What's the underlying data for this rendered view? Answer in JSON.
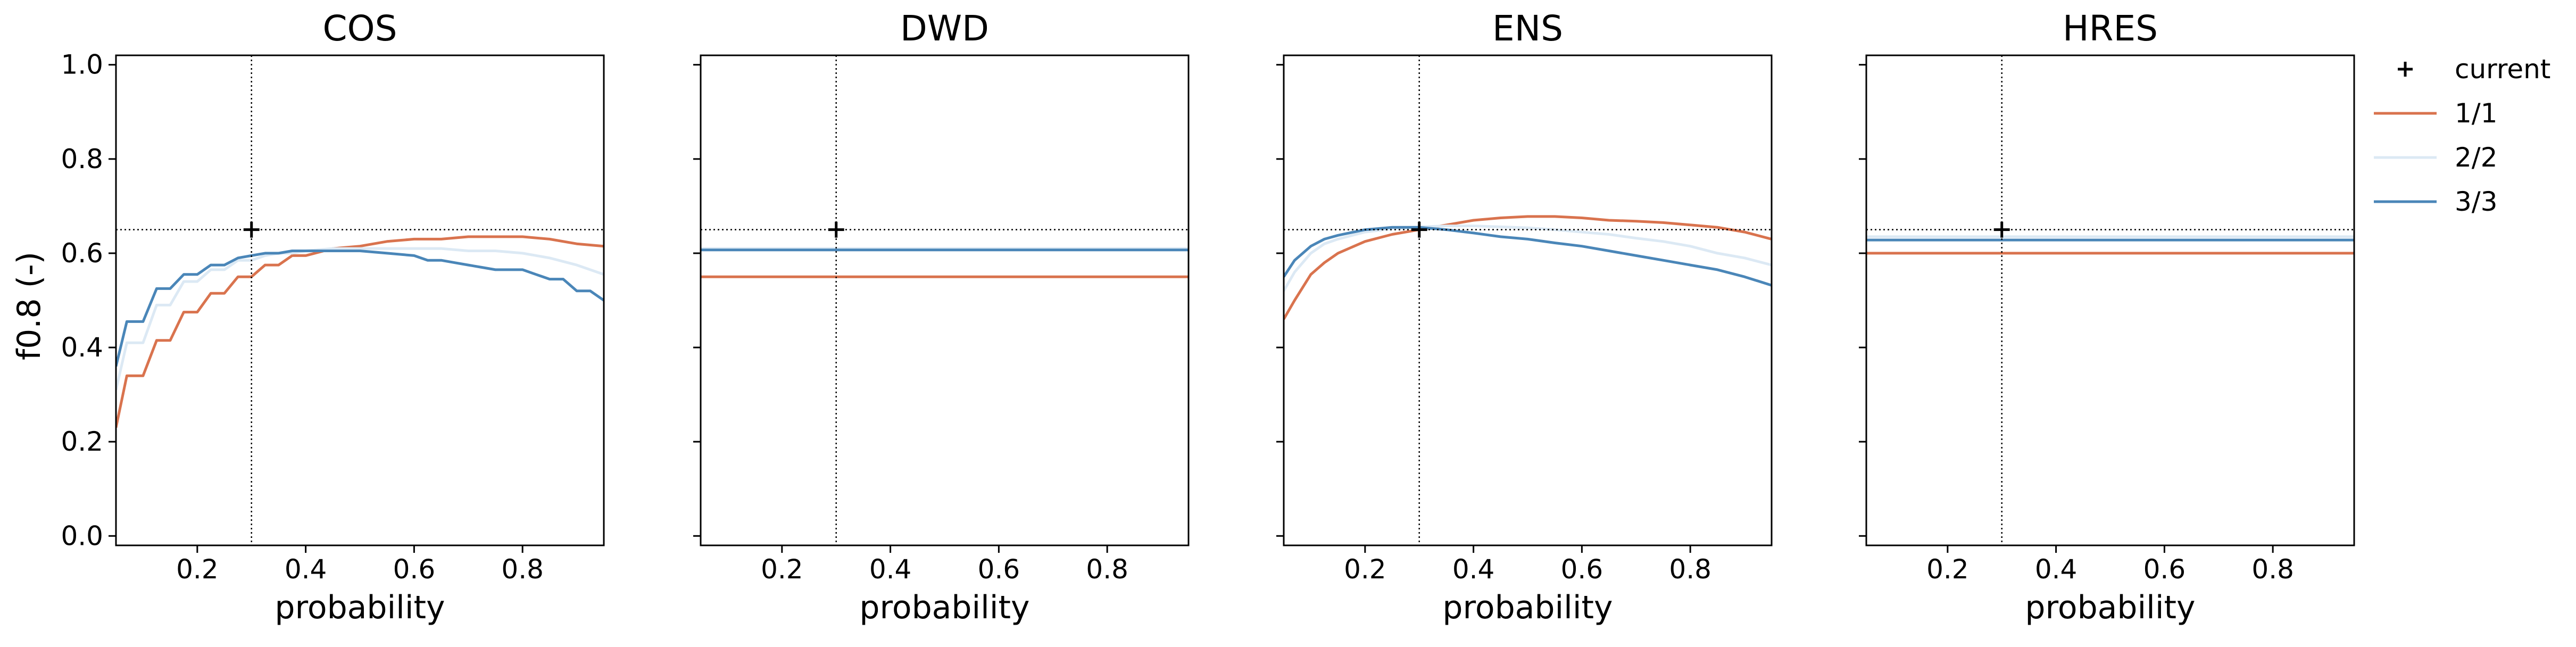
{
  "chart_data": {
    "type": "line",
    "layout": "1x4 small multiples, shared y-axis",
    "ylabel": "f0.8 (-)",
    "xlabel": "probability",
    "xlim": [
      0.05,
      0.95
    ],
    "ylim": [
      -0.02,
      1.02
    ],
    "xticks": [
      0.2,
      0.4,
      0.6,
      0.8
    ],
    "yticks": [
      0.0,
      0.2,
      0.4,
      0.6,
      0.8,
      1.0
    ],
    "grid": false,
    "legend": {
      "placement": "outside-right-top",
      "entries": [
        {
          "label": "current",
          "marker": "plus",
          "color": "#000000"
        },
        {
          "label": "1/1",
          "color": "#d9734e"
        },
        {
          "label": "2/2",
          "color": "#dce9f4"
        },
        {
          "label": "3/3",
          "color": "#4a86b8"
        }
      ]
    },
    "reference": {
      "x": 0.3,
      "y": 0.65,
      "style": "dotted"
    },
    "panels": [
      {
        "title": "COS",
        "current": {
          "x": 0.3,
          "y": 0.65
        },
        "series": [
          {
            "name": "1/1",
            "color": "#d9734e",
            "x": [
              0.05,
              0.07,
              0.075,
              0.1,
              0.125,
              0.15,
              0.175,
              0.2,
              0.225,
              0.25,
              0.275,
              0.3,
              0.325,
              0.35,
              0.375,
              0.4,
              0.45,
              0.5,
              0.55,
              0.6,
              0.65,
              0.7,
              0.75,
              0.8,
              0.85,
              0.9,
              0.95
            ],
            "y": [
              0.23,
              0.34,
              0.34,
              0.34,
              0.415,
              0.415,
              0.475,
              0.475,
              0.515,
              0.515,
              0.55,
              0.55,
              0.575,
              0.575,
              0.595,
              0.595,
              0.61,
              0.615,
              0.625,
              0.63,
              0.63,
              0.635,
              0.635,
              0.635,
              0.63,
              0.62,
              0.615
            ]
          },
          {
            "name": "2/2",
            "color": "#dce9f4",
            "x": [
              0.05,
              0.07,
              0.075,
              0.1,
              0.125,
              0.15,
              0.175,
              0.2,
              0.225,
              0.25,
              0.275,
              0.3,
              0.325,
              0.35,
              0.375,
              0.4,
              0.45,
              0.5,
              0.55,
              0.6,
              0.65,
              0.7,
              0.75,
              0.8,
              0.85,
              0.9,
              0.95
            ],
            "y": [
              0.31,
              0.41,
              0.41,
              0.41,
              0.49,
              0.49,
              0.54,
              0.54,
              0.565,
              0.565,
              0.585,
              0.585,
              0.595,
              0.6,
              0.6,
              0.605,
              0.61,
              0.61,
              0.61,
              0.61,
              0.61,
              0.605,
              0.605,
              0.6,
              0.59,
              0.575,
              0.555
            ]
          },
          {
            "name": "3/3",
            "color": "#4a86b8",
            "x": [
              0.05,
              0.07,
              0.075,
              0.1,
              0.125,
              0.15,
              0.175,
              0.2,
              0.225,
              0.25,
              0.275,
              0.3,
              0.325,
              0.35,
              0.375,
              0.4,
              0.45,
              0.5,
              0.55,
              0.6,
              0.625,
              0.65,
              0.675,
              0.7,
              0.725,
              0.75,
              0.8,
              0.825,
              0.85,
              0.875,
              0.9,
              0.925,
              0.95
            ],
            "y": [
              0.36,
              0.455,
              0.455,
              0.455,
              0.525,
              0.525,
              0.555,
              0.555,
              0.575,
              0.575,
              0.59,
              0.595,
              0.6,
              0.6,
              0.605,
              0.605,
              0.605,
              0.605,
              0.6,
              0.595,
              0.585,
              0.585,
              0.58,
              0.575,
              0.57,
              0.565,
              0.565,
              0.555,
              0.545,
              0.545,
              0.52,
              0.52,
              0.5
            ]
          }
        ]
      },
      {
        "title": "DWD",
        "current": {
          "x": 0.3,
          "y": 0.65
        },
        "series": [
          {
            "name": "1/1",
            "color": "#d9734e",
            "x": [
              0.05,
              0.95
            ],
            "y": [
              0.55,
              0.55
            ]
          },
          {
            "name": "2/2",
            "color": "#dce9f4",
            "x": [
              0.05,
              0.95
            ],
            "y": [
              0.61,
              0.61
            ]
          },
          {
            "name": "3/3",
            "color": "#4a86b8",
            "x": [
              0.05,
              0.95
            ],
            "y": [
              0.607,
              0.607
            ]
          }
        ]
      },
      {
        "title": "ENS",
        "current": {
          "x": 0.3,
          "y": 0.65
        },
        "series": [
          {
            "name": "1/1",
            "color": "#d9734e",
            "x": [
              0.05,
              0.07,
              0.1,
              0.125,
              0.15,
              0.2,
              0.25,
              0.3,
              0.35,
              0.4,
              0.45,
              0.5,
              0.55,
              0.6,
              0.65,
              0.7,
              0.75,
              0.8,
              0.85,
              0.9,
              0.95
            ],
            "y": [
              0.46,
              0.5,
              0.555,
              0.58,
              0.6,
              0.625,
              0.64,
              0.65,
              0.66,
              0.67,
              0.675,
              0.678,
              0.678,
              0.675,
              0.67,
              0.668,
              0.665,
              0.66,
              0.655,
              0.645,
              0.63
            ]
          },
          {
            "name": "2/2",
            "color": "#dce9f4",
            "x": [
              0.05,
              0.07,
              0.1,
              0.125,
              0.15,
              0.2,
              0.25,
              0.3,
              0.35,
              0.4,
              0.45,
              0.5,
              0.55,
              0.6,
              0.65,
              0.7,
              0.75,
              0.8,
              0.85,
              0.9,
              0.95
            ],
            "y": [
              0.52,
              0.56,
              0.6,
              0.62,
              0.63,
              0.645,
              0.652,
              0.656,
              0.658,
              0.658,
              0.656,
              0.654,
              0.65,
              0.645,
              0.64,
              0.632,
              0.625,
              0.615,
              0.6,
              0.59,
              0.575
            ]
          },
          {
            "name": "3/3",
            "color": "#4a86b8",
            "x": [
              0.05,
              0.07,
              0.1,
              0.125,
              0.15,
              0.2,
              0.25,
              0.3,
              0.35,
              0.4,
              0.45,
              0.5,
              0.55,
              0.6,
              0.65,
              0.7,
              0.75,
              0.8,
              0.85,
              0.9,
              0.95
            ],
            "y": [
              0.55,
              0.585,
              0.615,
              0.63,
              0.638,
              0.65,
              0.655,
              0.655,
              0.65,
              0.643,
              0.635,
              0.63,
              0.622,
              0.615,
              0.605,
              0.595,
              0.585,
              0.575,
              0.565,
              0.55,
              0.532
            ]
          }
        ]
      },
      {
        "title": "HRES",
        "current": {
          "x": 0.3,
          "y": 0.65
        },
        "series": [
          {
            "name": "1/1",
            "color": "#d9734e",
            "x": [
              0.05,
              0.95
            ],
            "y": [
              0.6,
              0.6
            ]
          },
          {
            "name": "2/2",
            "color": "#dce9f4",
            "x": [
              0.05,
              0.95
            ],
            "y": [
              0.635,
              0.635
            ]
          },
          {
            "name": "3/3",
            "color": "#4a86b8",
            "x": [
              0.05,
              0.95
            ],
            "y": [
              0.628,
              0.628
            ]
          }
        ]
      }
    ]
  }
}
